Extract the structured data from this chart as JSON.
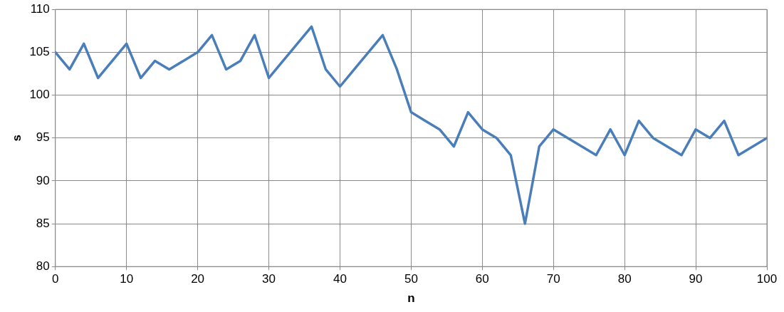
{
  "chart_data": {
    "type": "line",
    "xlabel": "n",
    "ylabel": "s",
    "x": [
      0,
      2,
      4,
      6,
      8,
      10,
      12,
      14,
      16,
      18,
      20,
      22,
      24,
      26,
      28,
      30,
      32,
      34,
      36,
      38,
      40,
      42,
      44,
      46,
      48,
      50,
      52,
      54,
      56,
      58,
      60,
      62,
      64,
      66,
      68,
      70,
      72,
      74,
      76,
      78,
      80,
      82,
      84,
      86,
      88,
      90,
      92,
      94,
      96,
      98,
      100
    ],
    "series": [
      {
        "color": "#4a7ebb",
        "values": [
          105,
          103,
          106,
          102,
          104,
          106,
          102,
          104,
          103,
          104,
          105,
          107,
          103,
          104,
          107,
          102,
          104,
          106,
          108,
          103,
          101,
          103,
          105,
          107,
          103,
          98,
          97,
          96,
          94,
          98,
          96,
          95,
          93,
          85,
          94,
          96,
          95,
          94,
          93,
          96,
          93,
          97,
          95,
          94,
          93,
          96,
          95,
          97,
          93,
          94,
          95
        ]
      }
    ],
    "xlim": [
      0,
      100
    ],
    "xticks": [
      0,
      10,
      20,
      30,
      40,
      50,
      60,
      70,
      80,
      90,
      100
    ],
    "ylim": [
      80,
      110
    ],
    "yticks": [
      80,
      85,
      90,
      95,
      100,
      105,
      110
    ],
    "grid": true,
    "legend": false,
    "marker": "none",
    "line_style": "solid"
  }
}
